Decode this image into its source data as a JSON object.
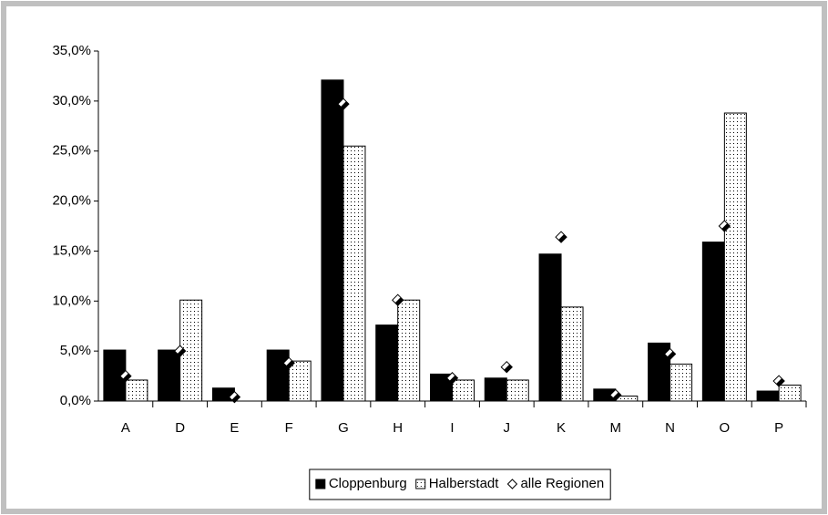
{
  "chart_data": {
    "type": "bar",
    "categories": [
      "A",
      "D",
      "E",
      "F",
      "G",
      "H",
      "I",
      "J",
      "K",
      "M",
      "N",
      "O",
      "P"
    ],
    "series": [
      {
        "name": "Cloppenburg",
        "color": "#000000",
        "values": [
          5.1,
          5.1,
          1.3,
          5.1,
          32.1,
          7.6,
          2.7,
          2.3,
          14.7,
          1.2,
          5.8,
          15.9,
          1.0
        ]
      },
      {
        "name": "Halberstadt",
        "color": "#ffffff",
        "fill_pattern": "dots",
        "values": [
          2.1,
          10.1,
          0,
          4.0,
          25.5,
          10.1,
          2.1,
          2.1,
          9.4,
          0.5,
          3.7,
          28.8,
          1.6
        ]
      },
      {
        "name": "alle Regionen",
        "color": "#ffffff",
        "marker": "diamond",
        "values": [
          2.5,
          5.0,
          0.4,
          3.8,
          29.7,
          10.1,
          2.3,
          3.4,
          16.4,
          0.6,
          4.7,
          17.5,
          2.0
        ]
      }
    ],
    "ylim": [
      0,
      35
    ],
    "yticks": [
      {
        "value": 0,
        "label": "0,0%"
      },
      {
        "value": 5,
        "label": "5,0%"
      },
      {
        "value": 10,
        "label": "10,0%"
      },
      {
        "value": 15,
        "label": "15,0%"
      },
      {
        "value": 20,
        "label": "20,0%"
      },
      {
        "value": 25,
        "label": "25,0%"
      },
      {
        "value": 30,
        "label": "30,0%"
      },
      {
        "value": 35,
        "label": "35,0%"
      }
    ],
    "legend": "bottom",
    "grid": false
  }
}
